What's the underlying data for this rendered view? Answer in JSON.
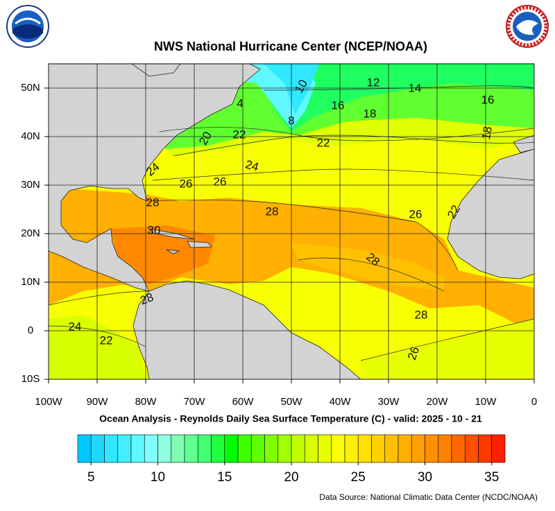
{
  "header": {
    "title": "NWS National Hurricane Center (NCEP/NOAA)"
  },
  "map": {
    "lon_range": [
      -100,
      0
    ],
    "lat_range": [
      -10,
      55
    ],
    "lon_ticks": [
      {
        "value": -100,
        "label": "100W"
      },
      {
        "value": -90,
        "label": "90W"
      },
      {
        "value": -80,
        "label": "80W"
      },
      {
        "value": -70,
        "label": "70W"
      },
      {
        "value": -60,
        "label": "60W"
      },
      {
        "value": -50,
        "label": "50W"
      },
      {
        "value": -40,
        "label": "40W"
      },
      {
        "value": -30,
        "label": "30W"
      },
      {
        "value": -20,
        "label": "20W"
      },
      {
        "value": -10,
        "label": "10W"
      },
      0
    ],
    "lat_ticks": [
      {
        "value": 50,
        "label": "50N"
      },
      {
        "value": 40,
        "label": "40N"
      },
      {
        "value": 30,
        "label": "30N"
      },
      {
        "value": 20,
        "label": "20N"
      },
      {
        "value": 10,
        "label": "10N"
      },
      0,
      {
        "value": -10,
        "label": "10S"
      }
    ],
    "contour_labels": [
      12,
      14,
      16,
      10,
      16,
      18,
      8,
      4,
      18,
      20,
      22,
      22,
      24,
      24,
      26,
      26,
      28,
      28,
      26,
      22,
      30,
      28,
      28,
      28,
      24,
      22,
      26
    ]
  },
  "subtitle": "Ocean Analysis - Reynolds Daily Sea Surface Temperature (C) - valid: 2025 - 10 - 21",
  "colorbar": {
    "range": [
      4,
      36
    ],
    "ticks": [
      5,
      10,
      15,
      20,
      25,
      30,
      35
    ],
    "colors": [
      "#00c8ff",
      "#20d8ff",
      "#30e8ff",
      "#40f0ff",
      "#60f8ff",
      "#80ffff",
      "#90ffe0",
      "#80ffb0",
      "#60ff90",
      "#40ff70",
      "#20ff40",
      "#00ff00",
      "#40ff00",
      "#60ff00",
      "#80ff00",
      "#a0ff00",
      "#c0ff00",
      "#d8ff00",
      "#e8ff00",
      "#f8ff00",
      "#fff000",
      "#ffe000",
      "#ffd000",
      "#ffc000",
      "#ffb000",
      "#ffa000",
      "#ff9000",
      "#ff8000",
      "#ff6800",
      "#ff5000",
      "#ff3800",
      "#ff2000"
    ]
  },
  "source": "Data Source: National Climatic Data Center (NCDC/NOAA)"
}
